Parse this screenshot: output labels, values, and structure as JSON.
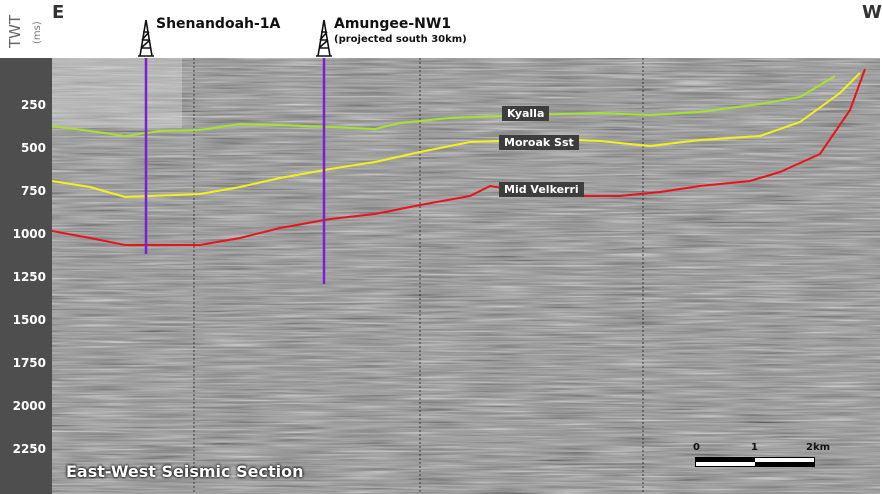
{
  "axis": {
    "title": "TWT",
    "unit": "(ms)",
    "ticks": [
      "250",
      "500",
      "750",
      "1000",
      "1250",
      "1500",
      "1750",
      "2000",
      "2250"
    ]
  },
  "directions": {
    "left": "E",
    "right": "W"
  },
  "wells": [
    {
      "name": "Shenandoah-1A",
      "subtitle": ""
    },
    {
      "name": "Amungee-NW1",
      "subtitle": "(projected south 30km)"
    }
  ],
  "horizons": [
    {
      "name": "Kyalla",
      "color": "#a6e22e"
    },
    {
      "name": "Moroak Sst",
      "color": "#f2f21a"
    },
    {
      "name": "Mid Velkerri",
      "color": "#e8141a"
    }
  ],
  "well_color": "#7a1fd6",
  "section_title": "East-West Seismic Section",
  "scale_bar": {
    "labels": [
      "0",
      "1",
      "2km"
    ]
  }
}
